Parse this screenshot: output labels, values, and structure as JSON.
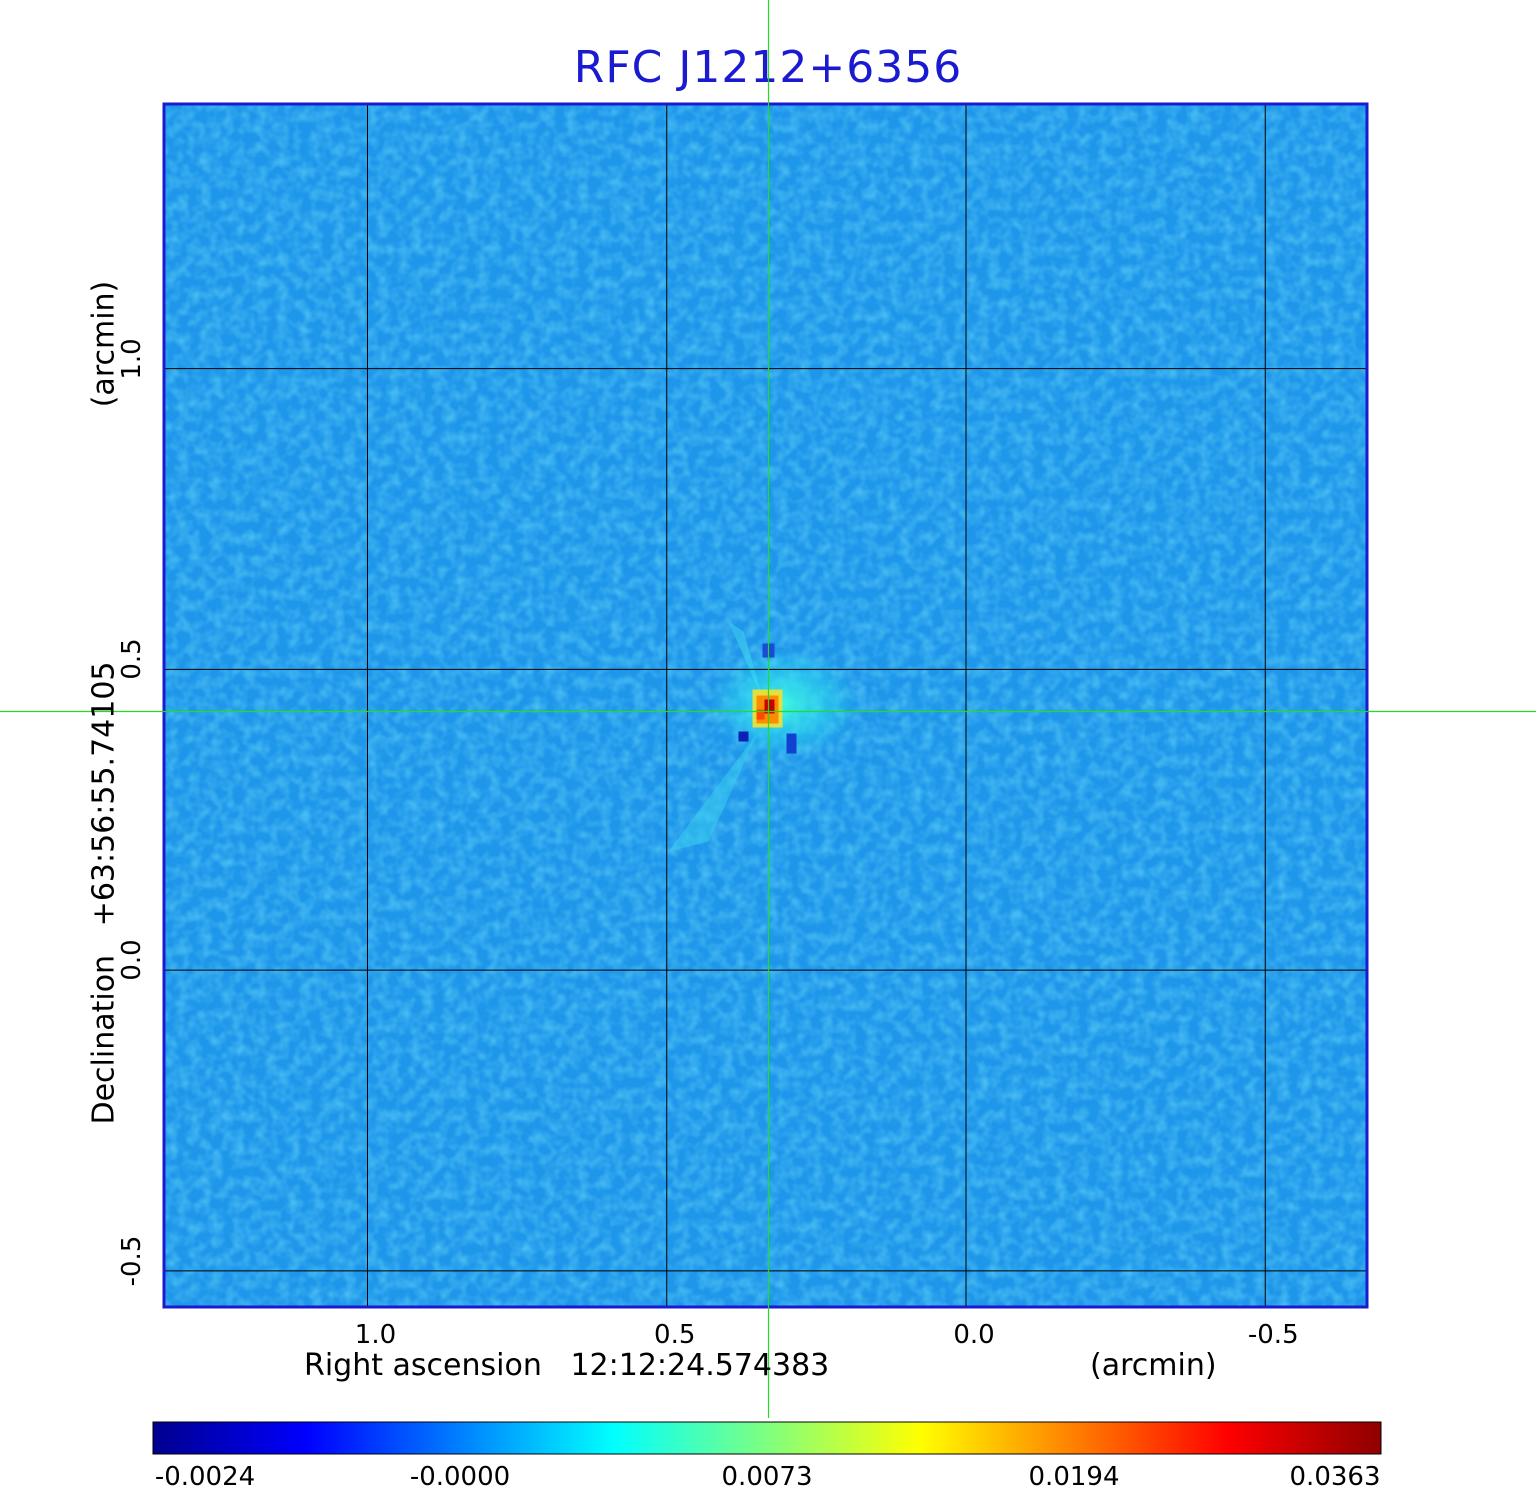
{
  "chart_data": {
    "type": "heatmap",
    "title": "RFC J1212+6356",
    "xlabel": "Right ascension",
    "xlabel_center": "12:12:24.574383",
    "xlabel_unit": "(arcmin)",
    "ylabel": "Declination",
    "ylabel_center": "+63:56:55.74105",
    "ylabel_unit": "(arcmin)",
    "x_ticks": [
      "1.0",
      "0.5",
      "0.0",
      "-0.5"
    ],
    "x_tick_values": [
      1.0,
      0.5,
      0.0,
      -0.5
    ],
    "y_ticks": [
      "1.0",
      "0.5",
      "0.0",
      "-0.5"
    ],
    "y_tick_values": [
      1.0,
      0.5,
      0.0,
      -0.5
    ],
    "xlim": [
      1.34,
      -0.67
    ],
    "ylim": [
      -0.56,
      1.44
    ],
    "source_peak": {
      "x": 0.33,
      "y": 0.43,
      "value": 0.0363
    },
    "crosshair": {
      "x": 0.33,
      "y": 0.43
    },
    "grid": true,
    "colormap": "jet",
    "colorbar_ticks": [
      "-0.0024",
      "-0.0000",
      "0.0073",
      "0.0194",
      "0.0363"
    ],
    "colorbar_range": [
      -0.0024,
      0.0363
    ]
  },
  "colors": {
    "title": "#1a1ad0",
    "frame": "#1a1ad0",
    "grid": "#000000",
    "crosshair": "#22dd22",
    "background_field": "#1e96ea"
  }
}
